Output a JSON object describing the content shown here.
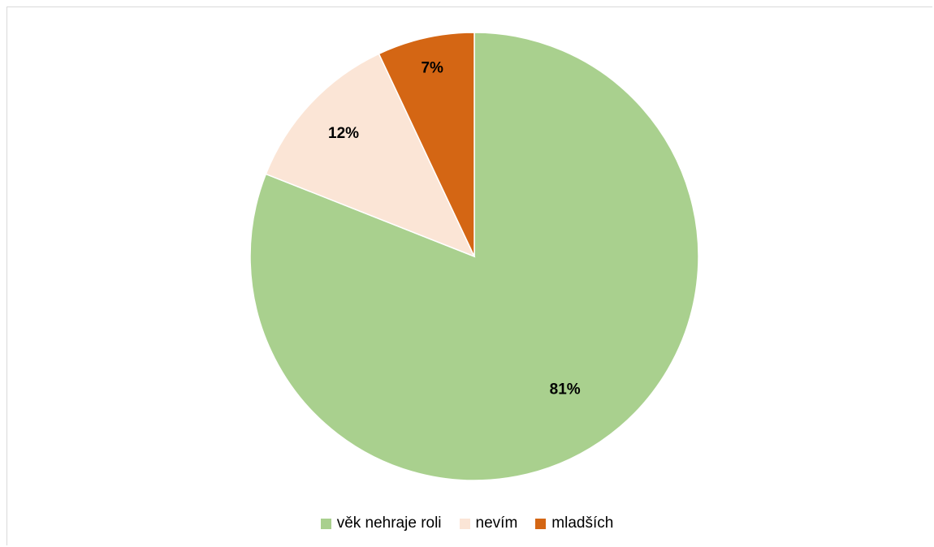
{
  "chart_data": {
    "type": "pie",
    "title": "",
    "categories": [
      "věk nehraje roli",
      "nevím",
      "mladších"
    ],
    "values": [
      81,
      12,
      7
    ],
    "labels": [
      "81%",
      "12%",
      "7%"
    ],
    "colors": [
      "#a9d08e",
      "#fbe5d6",
      "#d46614"
    ],
    "start_angle_deg": 0,
    "direction": "clockwise",
    "legend_position": "bottom"
  }
}
